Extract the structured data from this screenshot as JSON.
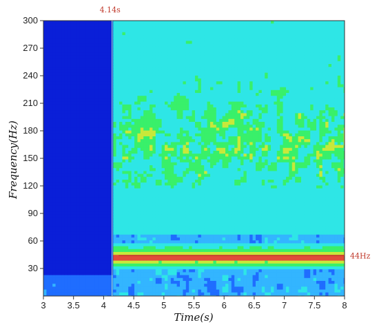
{
  "chart_data": {
    "type": "heatmap",
    "title": "",
    "xlabel": "Time(s)",
    "ylabel": "Frequency(Hz)",
    "xlim": [
      3,
      8
    ],
    "ylim": [
      0,
      300
    ],
    "x_ticks": [
      "3",
      "3.5",
      "4",
      "4.5",
      "5",
      "5.5",
      "6",
      "6.5",
      "7",
      "7.5",
      "8"
    ],
    "y_ticks": [
      "30",
      "60",
      "90",
      "120",
      "150",
      "180",
      "210",
      "240",
      "270",
      "300"
    ],
    "colormap": [
      "#0a1fd8",
      "#1f6dff",
      "#33b5ff",
      "#2ee6e6",
      "#39f06a",
      "#c8e83a",
      "#e24b3a"
    ],
    "grid": false,
    "annotations": {
      "vertical_line": {
        "x": 4.14,
        "label": "4.14s"
      },
      "horizontal_line": {
        "y": 44,
        "label": "44Hz"
      }
    }
  }
}
